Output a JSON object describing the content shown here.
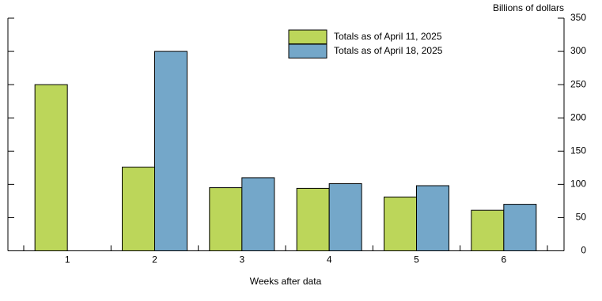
{
  "chart_data": {
    "type": "bar",
    "y_axis_label": "Billions of dollars",
    "x_axis_label": "Weeks after data",
    "categories": [
      "1",
      "2",
      "3",
      "4",
      "5",
      "6"
    ],
    "series": [
      {
        "name": "Totals as of April 11, 2025",
        "color": "#bcd65a",
        "values": [
          250,
          126,
          95,
          94,
          81,
          61
        ]
      },
      {
        "name": "Totals as of April 18, 2025",
        "color": "#74a7c9",
        "values": [
          null,
          300,
          110,
          101,
          98,
          70
        ]
      }
    ],
    "ylim": [
      0,
      350
    ],
    "yticks": [
      0,
      50,
      100,
      150,
      200,
      250,
      300,
      350
    ],
    "grid": false
  }
}
